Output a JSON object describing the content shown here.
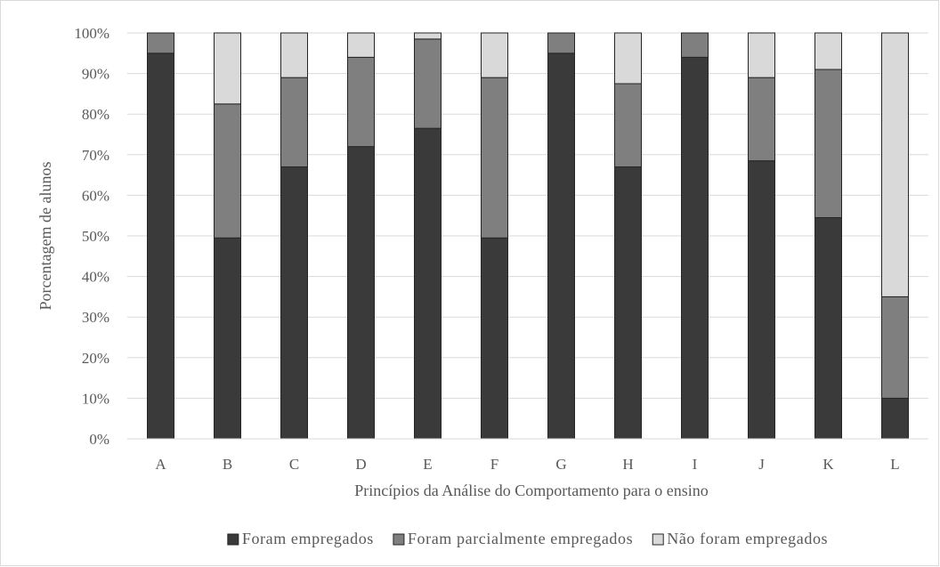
{
  "chart_data": {
    "type": "bar",
    "stacked": true,
    "percent": true,
    "categories": [
      "A",
      "B",
      "C",
      "D",
      "E",
      "F",
      "G",
      "H",
      "I",
      "J",
      "K",
      "L"
    ],
    "series": [
      {
        "name": "Foram empregados",
        "color": "#3a3a3a",
        "values": [
          95,
          49.5,
          67,
          72,
          76.5,
          49.5,
          95,
          67,
          94,
          68.5,
          54.5,
          10
        ]
      },
      {
        "name": "Foram parcialmente empregados",
        "color": "#7f7f7f",
        "values": [
          5,
          33,
          22,
          22,
          22,
          39.5,
          5,
          20.5,
          6,
          20.5,
          36.5,
          25
        ]
      },
      {
        "name": "Não foram empregados",
        "color": "#d9d9d9",
        "values": [
          0,
          17.5,
          11,
          6,
          1.5,
          11,
          0,
          12.5,
          0,
          11,
          9,
          65
        ]
      }
    ],
    "ylim": [
      0,
      100
    ],
    "yticks": [
      "0%",
      "10%",
      "20%",
      "30%",
      "40%",
      "50%",
      "60%",
      "70%",
      "80%",
      "90%",
      "100%"
    ],
    "xlabel": "Princípios da Análise do Comportamento para o ensino",
    "ylabel": "Porcentagem de alunos",
    "legend_position": "bottom",
    "grid": true
  }
}
